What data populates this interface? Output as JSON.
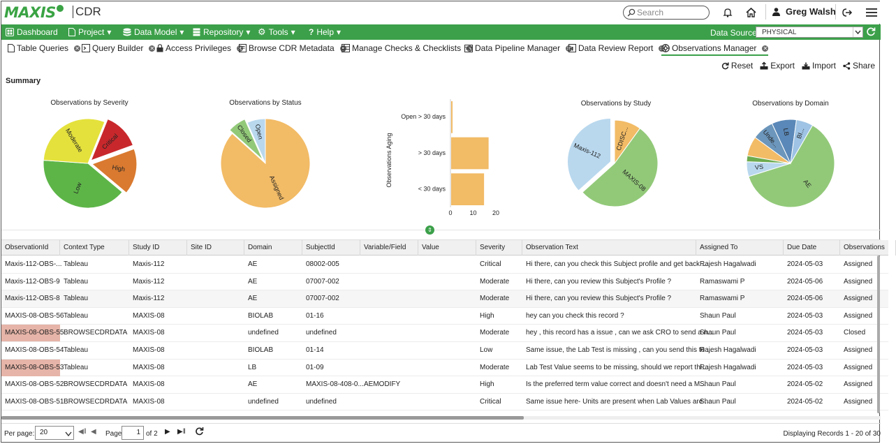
{
  "header": {
    "logo_text": "MAXIS",
    "app_name": "CDR",
    "search_placeholder": "Search",
    "user_name": "Greg Walsh"
  },
  "menu": {
    "items": [
      "Dashboard",
      "Project",
      "Data Model",
      "Repository",
      "Tools",
      "Help"
    ],
    "data_source_label": "Data Source",
    "data_source_value": "PHYSICAL"
  },
  "tabs": [
    "Table Queries",
    "Query Builder",
    "Access Privileges",
    "Browse CDR Metadata",
    "Manage Checks & Checklists",
    "Data Pipeline Manager",
    "Data Review Report",
    "Observations Manager"
  ],
  "actions": [
    "Reset",
    "Export",
    "Import",
    "Share"
  ],
  "summary_title": "Summary",
  "chart_data": [
    {
      "type": "pie",
      "title": "Observations by Severity",
      "labels": [
        "Critical",
        "High",
        "Low",
        "Moderate"
      ],
      "values": [
        4,
        5,
        12,
        9
      ],
      "colors": [
        "#c8282c",
        "#d97a30",
        "#5db548",
        "#e4e13c"
      ],
      "exploded": [
        "Critical",
        "High"
      ]
    },
    {
      "type": "pie",
      "title": "Observations by Status",
      "labels": [
        "Assigned",
        "Closed",
        "Open"
      ],
      "values": [
        26,
        2,
        2
      ],
      "colors": [
        "#f2bb66",
        "#92c979",
        "#b9d8ee"
      ],
      "exploded": [
        "Closed"
      ]
    },
    {
      "type": "bar",
      "orientation": "horizontal",
      "ylabel": "Observations Aging",
      "categories": [
        "Open > 30 days",
        "> 30 days",
        "< 30 days"
      ],
      "values": [
        0.3,
        16.5,
        14.5
      ],
      "xlim": [
        0,
        20
      ],
      "xticks": [
        0,
        10,
        20
      ],
      "color": "#f2bb66"
    },
    {
      "type": "pie",
      "title": "Observations by Study",
      "labels": [
        "CDISC...",
        "MAXIS-08",
        "Maxis-112"
      ],
      "values": [
        3,
        16,
        11
      ],
      "colors": [
        "#f2bb66",
        "#92c979",
        "#b9d8ee"
      ],
      "exploded": [
        "Maxis-112"
      ]
    },
    {
      "type": "pie",
      "title": "Observations by Domain",
      "labels": [
        "AE",
        "VS",
        "",
        "",
        "Unde...",
        "LB",
        "BI..."
      ],
      "values": [
        17,
        1.5,
        0.6,
        2,
        2.2,
        2.5,
        1.7
      ],
      "colors": [
        "#92c979",
        "#b9d8ee",
        "#6dab4f",
        "#f2bb66",
        "#6c96bb",
        "#5a88b8",
        "#9ec3e4"
      ]
    }
  ],
  "table": {
    "columns": [
      "ObservationId",
      "Context Type",
      "Study ID",
      "Site ID",
      "Domain",
      "SubjectId",
      "Variable/Field",
      "Value",
      "Severity",
      "Observation Text",
      "Assigned To",
      "Due Date",
      "Observations"
    ],
    "rows": [
      [
        "Maxis-112-OBS-...",
        "Tableau",
        "Maxis-112",
        "",
        "AE",
        "08002-005",
        "",
        "",
        "Critical",
        "Hi there, can you check this Subject profile and get back ...",
        "Rajesh Hagalwadi",
        "2024-05-03",
        "Assigned"
      ],
      [
        "Maxis-112-OBS-9",
        "Tableau",
        "Maxis-112",
        "",
        "AE",
        "07007-002",
        "",
        "",
        "Moderate",
        "Hi there, can you review this Subject's Profile ?",
        "Ramaswami P",
        "2024-05-06",
        "Assigned"
      ],
      [
        "Maxis-112-OBS-8",
        "Tableau",
        "Maxis-112",
        "",
        "AE",
        "07007-002",
        "",
        "",
        "Moderate",
        "Hi there, can you review this Subject's Profile ?",
        "Ramaswami P",
        "2024-05-06",
        "Assigned"
      ],
      [
        "MAXIS-08-OBS-56",
        "Tableau",
        "MAXIS-08",
        "",
        "BIOLAB",
        "01-16",
        "",
        "",
        "High",
        "hey can you check this record ?",
        "Shaun Paul",
        "2024-05-03",
        "Assigned"
      ],
      [
        "MAXIS-08-OBS-55",
        "BROWSECDRDATA",
        "MAXIS-08",
        "",
        "undefined",
        "undefined",
        "",
        "",
        "Moderate",
        "hey , this record has a issue , can we ask CRO to send a n...",
        "Shaun Paul",
        "2024-05-03",
        "Closed"
      ],
      [
        "MAXIS-08-OBS-54",
        "Tableau",
        "MAXIS-08",
        "",
        "BIOLAB",
        "01-14",
        "",
        "",
        "Low",
        "Same issue, the Lab Test is missing , can you send this to ...",
        "Rajesh Hagalwadi",
        "2024-05-03",
        "Assigned"
      ],
      [
        "MAXIS-08-OBS-53",
        "Tableau",
        "MAXIS-08",
        "",
        "LB",
        "01-09",
        "",
        "",
        "Moderate",
        "Lab Test Value seems to be missing, should we report thi...",
        "Rajesh Hagalwadi",
        "2024-05-03",
        "Assigned"
      ],
      [
        "MAXIS-08-OBS-52",
        "BROWSECDRDATA",
        "MAXIS-08",
        "",
        "AE",
        "MAXIS-08-408-0...",
        "AEMODIFY",
        "",
        "High",
        "Is the preferred term value correct and doesn't need a M...",
        "Shaun Paul",
        "2024-05-02",
        "Assigned"
      ],
      [
        "MAXIS-08-OBS-51",
        "BROWSECDRDATA",
        "MAXIS-08",
        "",
        "undefined",
        "undefined",
        "",
        "",
        "Critical",
        "Same issue here- Units are present when Lab Values are ...",
        "Shaun Paul",
        "2024-05-02",
        "Assigned"
      ]
    ],
    "highlighted_rows": [
      4,
      6
    ],
    "highlight_color": "#e6b4a8"
  },
  "footer": {
    "per_page_label": "Per page:",
    "per_page_value": "20",
    "page_label": "Page",
    "page_value": "1",
    "of_label": "of 2",
    "records_text": "Displaying Records 1 - 20 of 30"
  },
  "colors": {
    "brand_green": "#3ca04a",
    "logo_blue": "#1e3f7a"
  }
}
